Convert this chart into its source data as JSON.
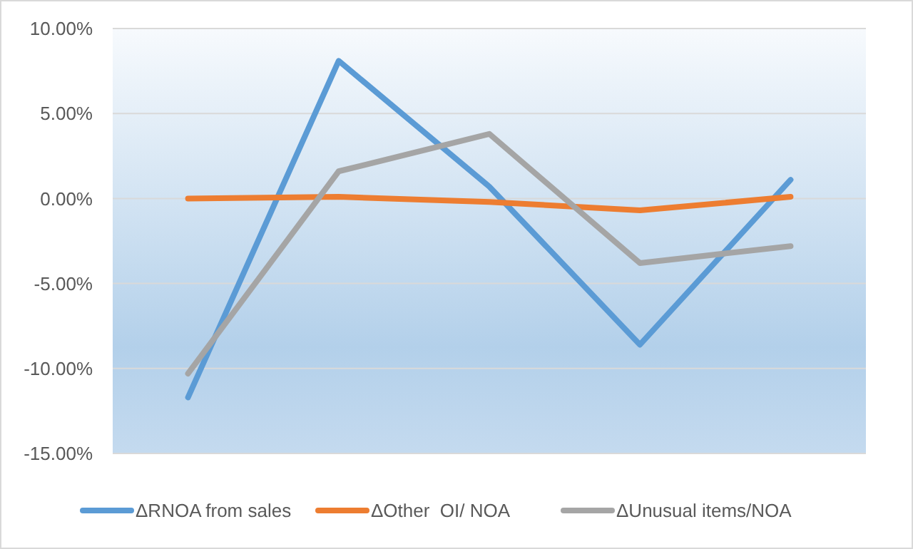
{
  "chart_data": {
    "type": "line",
    "categories": [
      null,
      null,
      null,
      null,
      null
    ],
    "series": [
      {
        "name": "ΔRNOA from sales",
        "color": "#5b9bd5",
        "values": [
          -11.7,
          8.1,
          0.7,
          -8.6,
          1.1
        ]
      },
      {
        "name": "ΔOther  OI/ NOA",
        "color": "#ed7d31",
        "values": [
          0,
          0.1,
          -0.2,
          -0.7,
          0.1
        ]
      },
      {
        "name": "ΔUnusual items/NOA",
        "color": "#a5a5a5",
        "values": [
          -10.3,
          1.6,
          3.8,
          -3.8,
          -2.8
        ]
      }
    ],
    "ylim": [
      -15,
      10
    ],
    "yticks": [
      {
        "value": 10,
        "label": "10.00%"
      },
      {
        "value": 5,
        "label": "5.00%"
      },
      {
        "value": 0,
        "label": "0.00%"
      },
      {
        "value": -5,
        "label": "-5.00%"
      },
      {
        "value": -10,
        "label": "-10.00%"
      },
      {
        "value": -15,
        "label": "-15.00%"
      }
    ],
    "grid": "y",
    "legend": "bottom",
    "marker": "none",
    "line_style": "solid"
  }
}
